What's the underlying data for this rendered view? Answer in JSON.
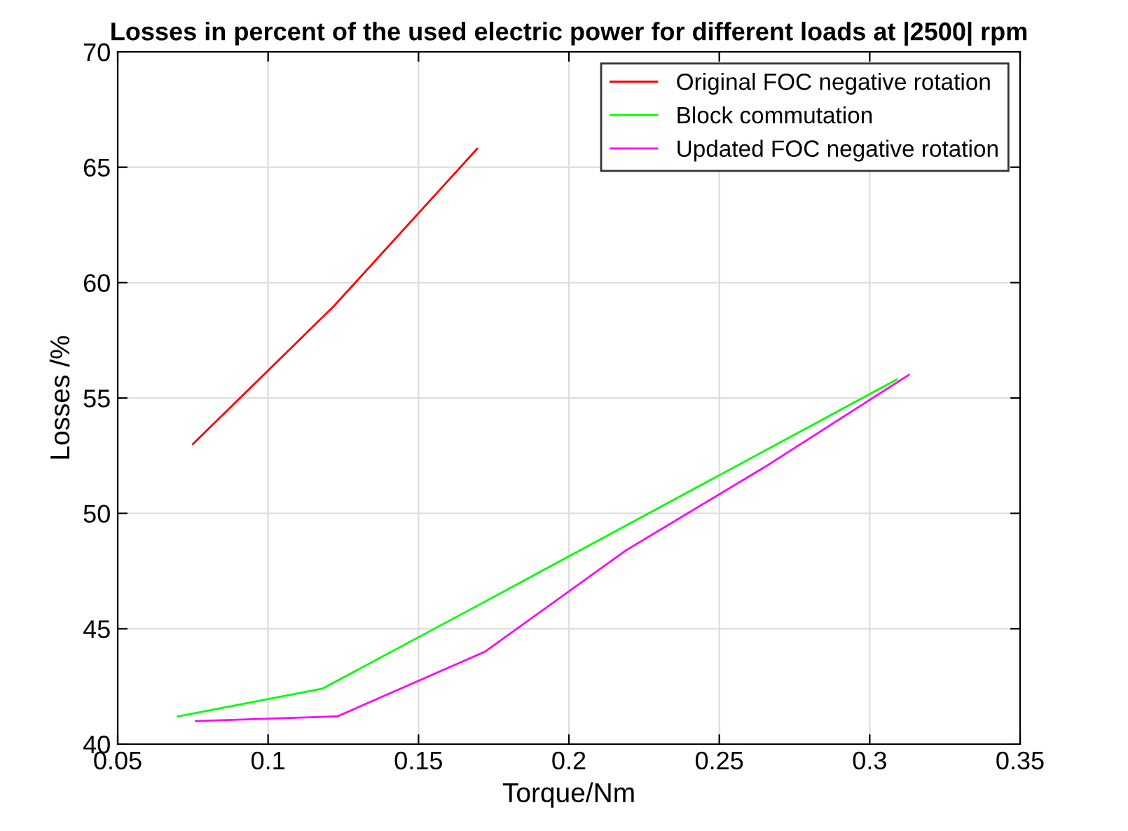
{
  "chart_data": {
    "type": "line",
    "title": "Losses in percent of the used electric power for different loads at |2500| rpm",
    "xlabel": "Torque/Nm",
    "ylabel": "Losses /%",
    "xlim": [
      0.05,
      0.35
    ],
    "xticks": [
      0.05,
      0.1,
      0.15,
      0.2,
      0.25,
      0.3,
      0.35
    ],
    "ylim": [
      40,
      70
    ],
    "yticks": [
      40,
      45,
      50,
      55,
      60,
      65,
      70
    ],
    "grid": true,
    "legend": "top right",
    "marker": "none",
    "line_style": "solid",
    "series": [
      {
        "name": "Original FOC negative rotation",
        "color": "#ff0000",
        "x": [
          0.075,
          0.122,
          0.1695
        ],
        "values": [
          53.0,
          59.0,
          65.8
        ]
      },
      {
        "name": "Block commutation",
        "color": "#00ff00",
        "x": [
          0.07,
          0.118,
          0.171,
          0.309
        ],
        "values": [
          41.2,
          42.4,
          46.1,
          55.8
        ]
      },
      {
        "name": "Updated FOC negative rotation",
        "color": "#ff00ff",
        "x": [
          0.076,
          0.123,
          0.172,
          0.219,
          0.265,
          0.313
        ],
        "values": [
          41.0,
          41.2,
          44.0,
          48.4,
          52.0,
          56.0
        ]
      }
    ]
  }
}
